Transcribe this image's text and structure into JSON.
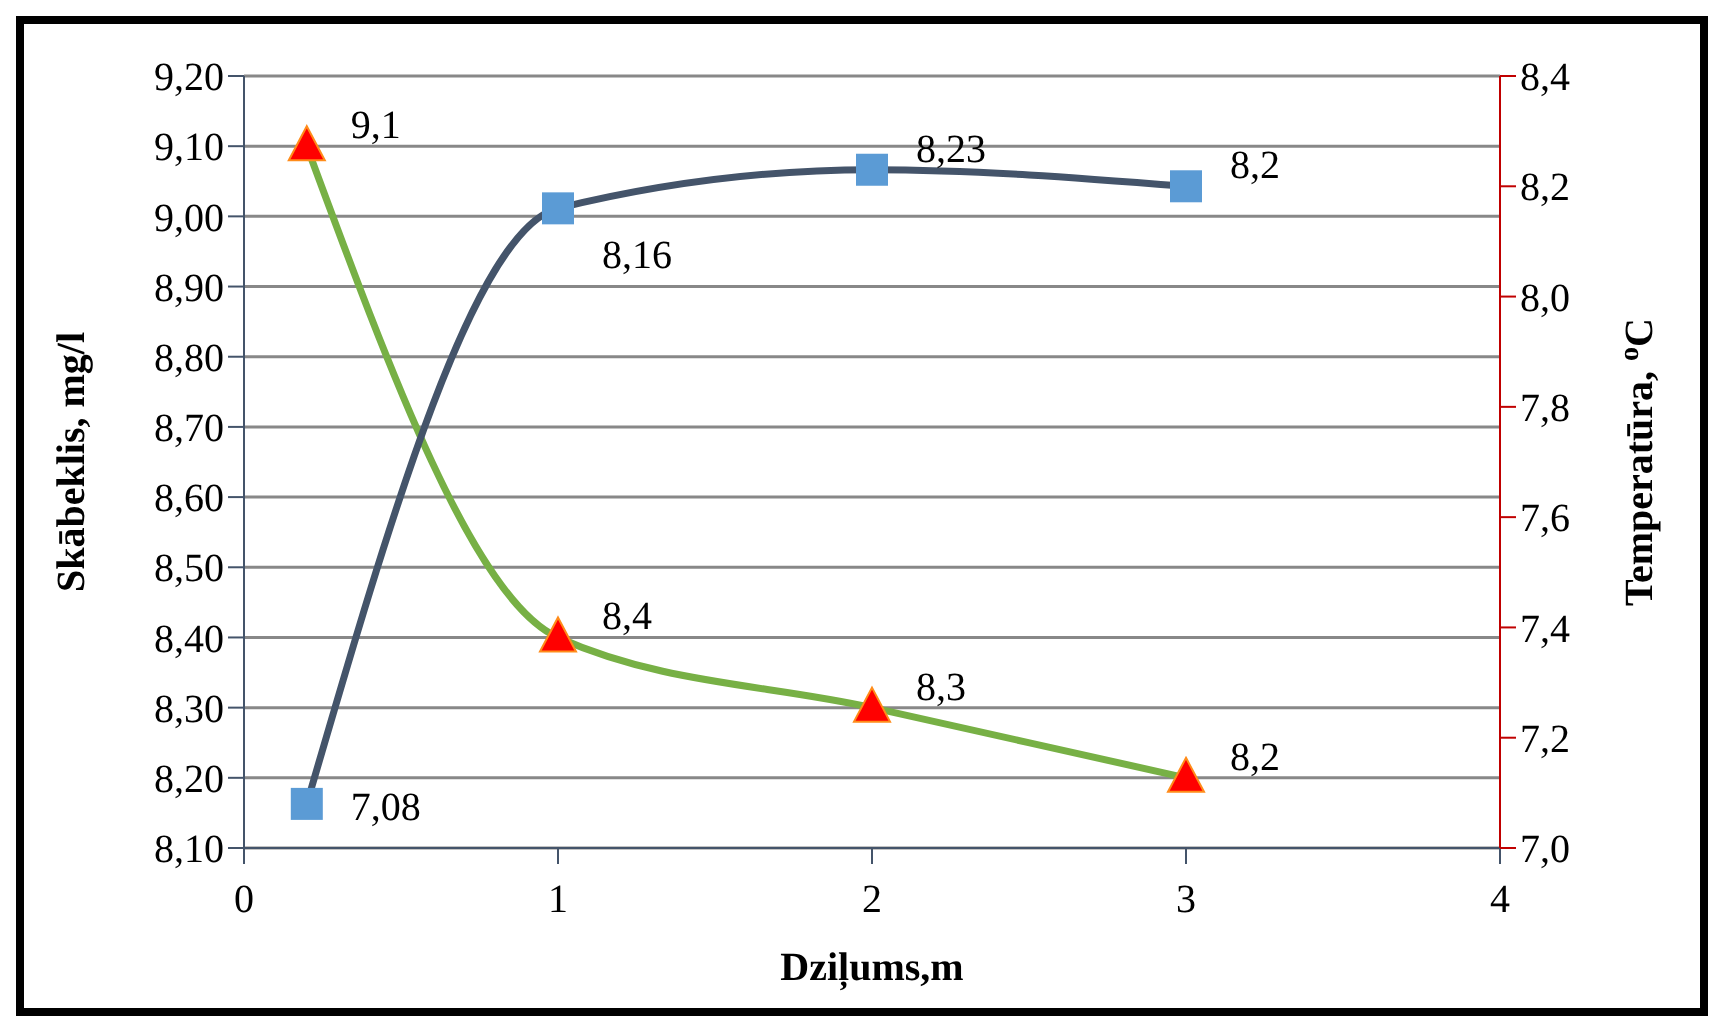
{
  "chart_data": {
    "type": "line",
    "xlabel": "Dziļums,m",
    "ylabel": "Skābeklis, mg/l",
    "y2label": "Temperatūra, $^{o}$C",
    "x": [
      0.2,
      1,
      2,
      3
    ],
    "series": [
      {
        "color": "#77b045",
        "colors": [
          "#ff0000",
          "#ff0000",
          "#ff0000",
          "#ff0000"
        ],
        "marker": "triangle",
        "values": [
          9.1,
          8.4,
          8.3,
          8.2
        ],
        "value_labels": [
          "9,1",
          "8,4",
          "8,3",
          "8,2"
        ]
      },
      {
        "color": "#44546a",
        "colors": [
          "#5b9bd5",
          "#5b9bd5",
          "#5b9bd5",
          "#5b9bd5"
        ],
        "marker": "square",
        "axis": "y2",
        "values": [
          7.08,
          8.16,
          8.23,
          8.2
        ],
        "value_labels": [
          "7,08",
          "8,16",
          "8,23",
          "8,2"
        ]
      }
    ],
    "xlim": [
      0,
      4
    ],
    "xticks": [
      0,
      1,
      2,
      3,
      4
    ],
    "ylim": [
      8.1,
      9.2
    ],
    "yticks": [
      {
        "value": 8.1,
        "label": "8,10"
      },
      {
        "value": 8.2,
        "label": "8,20"
      },
      {
        "value": 8.3,
        "label": "8,30"
      },
      {
        "value": 8.4,
        "label": "8,40"
      },
      {
        "value": 8.5,
        "label": "8,50"
      },
      {
        "value": 8.6,
        "label": "8,60"
      },
      {
        "value": 8.7,
        "label": "8,70"
      },
      {
        "value": 8.8,
        "label": "8,80"
      },
      {
        "value": 8.9,
        "label": "8,90"
      },
      {
        "value": 9.0,
        "label": "9,00"
      },
      {
        "value": 9.1,
        "label": "9,10"
      },
      {
        "value": 9.2,
        "label": "9,20"
      }
    ],
    "y2lim": [
      7.0,
      8.4
    ],
    "y2ticks": [
      {
        "value": 7.0,
        "label": "7,0"
      },
      {
        "value": 7.2,
        "label": "7,2"
      },
      {
        "value": 7.4,
        "label": "7,4"
      },
      {
        "value": 7.6,
        "label": "7,6"
      },
      {
        "value": 7.8,
        "label": "7,8"
      },
      {
        "value": 8.0,
        "label": "8,0"
      },
      {
        "value": 8.2,
        "label": "8,2"
      },
      {
        "value": 8.4,
        "label": "8,4"
      }
    ],
    "grid": "y",
    "legend": false
  }
}
